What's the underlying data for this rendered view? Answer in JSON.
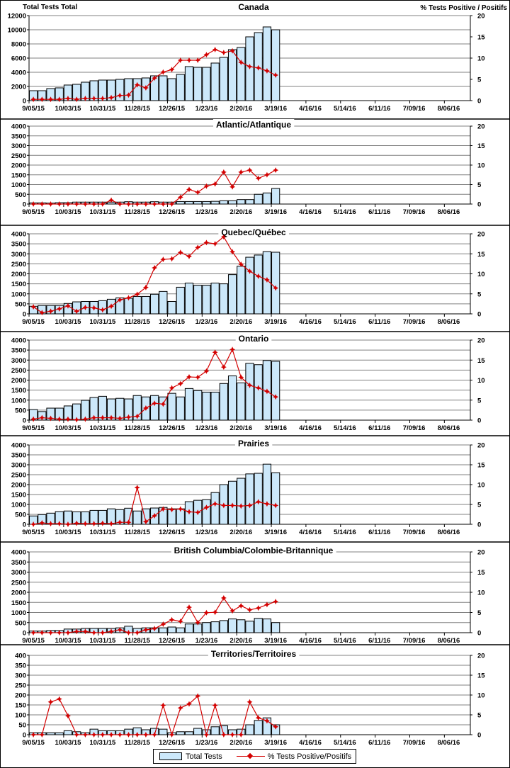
{
  "chart_data": {
    "type": "bar+line",
    "left_axis_label": "Total Tests Total",
    "right_axis_label": "% Tests Positive / Positifs",
    "x_tick_labels": [
      "9/05/15",
      "10/03/15",
      "10/31/15",
      "11/28/15",
      "12/26/15",
      "1/23/16",
      "2/20/16",
      "3/19/16",
      "4/16/16",
      "5/14/16",
      "6/11/16",
      "7/09/16",
      "8/06/16"
    ],
    "weeks_on_axis": 51,
    "legend": {
      "bars": "Total Tests",
      "line": "% Tests Positive/Positifs",
      "placement": "bottom"
    },
    "colors": {
      "bars": "#cce8fa",
      "line": "#d40000",
      "grid": "#808080"
    },
    "panels": [
      {
        "title": "Canada",
        "ylim": [
          0,
          12000
        ],
        "ystep": 2000,
        "y2lim": [
          0,
          20
        ],
        "y2step": 5,
        "total_tests": [
          1400,
          1400,
          1700,
          1800,
          2200,
          2300,
          2600,
          2800,
          2900,
          2900,
          3000,
          3100,
          3100,
          3200,
          3500,
          3500,
          3100,
          3700,
          4800,
          4700,
          4700,
          5300,
          6100,
          7200,
          7500,
          9000,
          9600,
          10400,
          10000
        ],
        "pct_positive": [
          0.3,
          0.3,
          0.3,
          0.3,
          0.5,
          0.3,
          0.5,
          0.5,
          0.5,
          0.7,
          1.2,
          1.3,
          3.7,
          3.0,
          5.3,
          6.7,
          7.3,
          9.5,
          9.5,
          9.5,
          10.8,
          12.0,
          11.3,
          11.7,
          9.0,
          8.0,
          7.7,
          7.0,
          6.0
        ]
      },
      {
        "title": "Atlantic/Atlantique",
        "ylim": [
          0,
          4000
        ],
        "ystep": 500,
        "y2lim": [
          0,
          20
        ],
        "y2step": 5,
        "total_tests": [
          60,
          60,
          50,
          70,
          70,
          100,
          100,
          100,
          100,
          100,
          100,
          120,
          100,
          100,
          120,
          100,
          100,
          130,
          130,
          130,
          130,
          140,
          170,
          170,
          230,
          230,
          500,
          570,
          800
        ],
        "pct_positive": [
          0,
          0,
          0,
          0,
          0,
          0,
          0,
          0,
          0,
          1.0,
          0,
          0,
          0,
          0,
          0,
          0,
          0,
          1.75,
          3.75,
          3.0,
          4.6,
          5.15,
          8.2,
          4.4,
          8.2,
          8.7,
          6.6,
          7.5,
          8.7
        ]
      },
      {
        "title": "Quebec/Québec",
        "ylim": [
          0,
          4000
        ],
        "ystep": 500,
        "y2lim": [
          0,
          20
        ],
        "y2step": 5,
        "total_tests": [
          380,
          420,
          420,
          420,
          520,
          600,
          620,
          620,
          660,
          730,
          800,
          780,
          870,
          870,
          980,
          1120,
          620,
          1330,
          1540,
          1430,
          1430,
          1540,
          1500,
          1960,
          2380,
          2830,
          2940,
          3110,
          3080
        ],
        "pct_positive": [
          1.75,
          0.3,
          0.65,
          1.25,
          2.0,
          0.65,
          1.6,
          1.5,
          1.0,
          1.9,
          3.5,
          4.0,
          4.9,
          6.6,
          11.5,
          13.6,
          13.75,
          15.35,
          14.35,
          16.6,
          17.8,
          17.5,
          19.25,
          15.5,
          12.4,
          10.65,
          9.4,
          8.5,
          6.45
        ]
      },
      {
        "title": "Ontario",
        "ylim": [
          0,
          4000
        ],
        "ystep": 500,
        "y2lim": [
          0,
          20
        ],
        "y2step": 5,
        "total_tests": [
          530,
          430,
          600,
          600,
          710,
          810,
          990,
          1130,
          1190,
          1060,
          1090,
          1060,
          1230,
          1160,
          1230,
          1160,
          1340,
          1160,
          1580,
          1480,
          1400,
          1400,
          1830,
          2210,
          1860,
          2840,
          2770,
          2980,
          2940
        ],
        "pct_positive": [
          0.25,
          0.6,
          0.45,
          0.25,
          0.25,
          0.1,
          0.25,
          0.6,
          0.6,
          0.6,
          0.45,
          0.75,
          0.95,
          3.0,
          4.2,
          4.0,
          8.05,
          9.1,
          10.8,
          10.7,
          12.25,
          16.95,
          13.25,
          17.65,
          10.7,
          8.7,
          8.05,
          7.2,
          5.8
        ]
      },
      {
        "title": "Prairies",
        "ylim": [
          0,
          4000
        ],
        "ystep": 500,
        "y2lim": [
          0,
          20
        ],
        "y2step": 5,
        "total_tests": [
          420,
          490,
          560,
          640,
          670,
          630,
          630,
          700,
          700,
          780,
          740,
          810,
          670,
          780,
          820,
          850,
          780,
          780,
          1140,
          1210,
          1240,
          1600,
          2000,
          2170,
          2320,
          2540,
          2570,
          3030,
          2600
        ],
        "pct_positive": [
          0,
          0.35,
          0.15,
          0.15,
          0,
          0.25,
          0.15,
          0.15,
          0.25,
          0.15,
          0.5,
          0.5,
          9.25,
          0.65,
          2.15,
          3.85,
          3.7,
          3.85,
          3.15,
          3.0,
          4.25,
          5.15,
          4.75,
          4.75,
          4.6,
          4.75,
          5.65,
          5.15,
          4.75
        ]
      },
      {
        "title": "British Columbia/Colombie-Britannique",
        "ylim": [
          0,
          4000
        ],
        "ystep": 500,
        "y2lim": [
          0,
          20
        ],
        "y2step": 5,
        "total_tests": [
          80,
          80,
          110,
          110,
          180,
          180,
          210,
          210,
          210,
          210,
          240,
          320,
          210,
          240,
          240,
          240,
          280,
          240,
          430,
          430,
          500,
          540,
          600,
          680,
          640,
          570,
          710,
          680,
          500
        ],
        "pct_positive": [
          0,
          0,
          0,
          0,
          0,
          0.3,
          0.3,
          0,
          0,
          0.3,
          0.7,
          0,
          0,
          0.7,
          1.0,
          2.1,
          3.2,
          2.8,
          6.3,
          2.5,
          4.95,
          5.05,
          8.6,
          5.4,
          6.65,
          5.65,
          6.1,
          6.95,
          7.7
        ]
      },
      {
        "title": "Territories/Territoires",
        "ylim": [
          0,
          400
        ],
        "ystep": 50,
        "y2lim": [
          0,
          20
        ],
        "y2step": 5,
        "total_tests": [
          10,
          10,
          10,
          10,
          20,
          15,
          10,
          28,
          20,
          20,
          20,
          28,
          35,
          25,
          32,
          28,
          10,
          15,
          15,
          32,
          25,
          40,
          45,
          25,
          28,
          50,
          72,
          85,
          50
        ],
        "pct_positive": [
          0,
          0,
          8.25,
          9.0,
          4.75,
          0,
          0,
          0,
          0,
          0,
          0,
          0,
          0,
          0,
          0,
          7.4,
          0,
          6.75,
          7.75,
          9.75,
          0,
          7.4,
          0,
          0,
          0,
          8.25,
          4.25,
          3.5,
          2.0
        ]
      }
    ]
  }
}
